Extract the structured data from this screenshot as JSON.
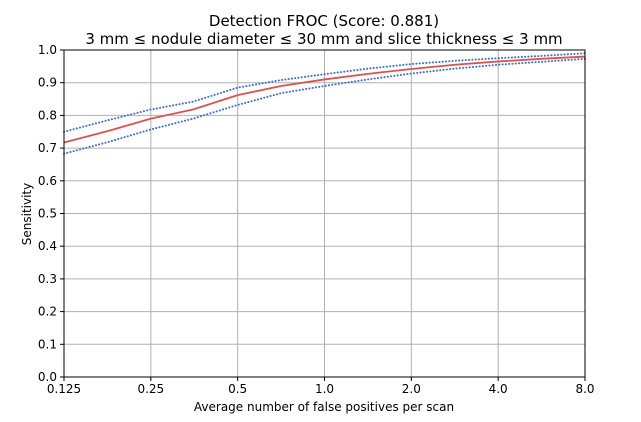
{
  "chart_data": {
    "type": "line",
    "title": "Detection FROC (Score: 0.881)",
    "subtitle": "3 mm ≤ nodule diameter ≤ 30 mm and slice thickness ≤ 3 mm",
    "xlabel": "Average number of false positives per scan",
    "ylabel": "Sensitivity",
    "x_scale": "log2",
    "xlim": [
      0.125,
      8.0
    ],
    "ylim": [
      0.0,
      1.0
    ],
    "x_ticks": [
      0.125,
      0.25,
      0.5,
      1.0,
      2.0,
      4.0,
      8.0
    ],
    "x_tick_labels": [
      "0.125",
      "0.25",
      "0.5",
      "1.0",
      "2.0",
      "4.0",
      "8.0"
    ],
    "y_ticks": [
      0.0,
      0.1,
      0.2,
      0.3,
      0.4,
      0.5,
      0.6,
      0.7,
      0.8,
      0.9,
      1.0
    ],
    "y_tick_labels": [
      "0.0",
      "0.1",
      "0.2",
      "0.3",
      "0.4",
      "0.5",
      "0.6",
      "0.7",
      "0.8",
      "0.9",
      "1.0"
    ],
    "grid": true,
    "x": [
      0.125,
      0.177,
      0.25,
      0.35,
      0.5,
      0.707,
      1.0,
      1.414,
      2.0,
      2.83,
      4.0,
      5.66,
      8.0
    ],
    "series": [
      {
        "role": "froc",
        "color": "#d9534f",
        "style": "solid",
        "values": [
          0.717,
          0.752,
          0.79,
          0.818,
          0.862,
          0.89,
          0.91,
          0.927,
          0.942,
          0.955,
          0.965,
          0.973,
          0.98
        ]
      },
      {
        "role": "upper_ci",
        "color": "#3d6fd1",
        "style": "dotted",
        "values": [
          0.75,
          0.785,
          0.818,
          0.842,
          0.885,
          0.908,
          0.926,
          0.943,
          0.957,
          0.967,
          0.975,
          0.982,
          0.99
        ]
      },
      {
        "role": "lower_ci",
        "color": "#3d6fd1",
        "style": "dotted",
        "values": [
          0.683,
          0.718,
          0.757,
          0.79,
          0.832,
          0.868,
          0.89,
          0.91,
          0.928,
          0.943,
          0.955,
          0.964,
          0.973
        ]
      }
    ]
  }
}
